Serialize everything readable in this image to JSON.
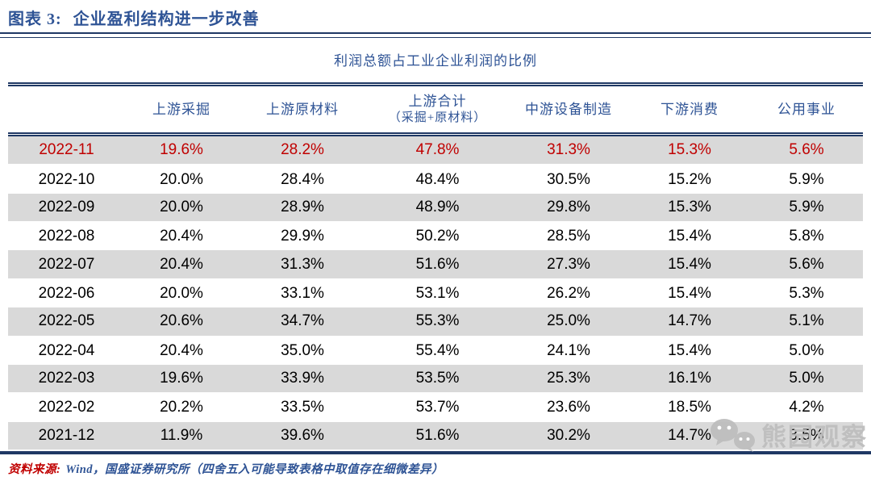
{
  "figure": {
    "label": "图表 3:",
    "title": "企业盈利结构进一步改善"
  },
  "table": {
    "title": "利润总额占工业企业利润的比例",
    "header": {
      "col1": "上游采掘",
      "col2": "上游原材料",
      "col3_line1": "上游合计",
      "col3_line2": "（采掘+原材料）",
      "col4": "中游设备制造",
      "col5": "下游消费",
      "col6": "公用事业"
    },
    "rows": [
      {
        "date": "2022-11",
        "values": [
          "19.6%",
          "28.2%",
          "47.8%",
          "31.3%",
          "15.3%",
          "5.6%"
        ],
        "highlight": true
      },
      {
        "date": "2022-10",
        "values": [
          "20.0%",
          "28.4%",
          "48.4%",
          "30.5%",
          "15.2%",
          "5.9%"
        ],
        "highlight": false
      },
      {
        "date": "2022-09",
        "values": [
          "20.0%",
          "28.9%",
          "48.9%",
          "29.8%",
          "15.3%",
          "5.9%"
        ],
        "highlight": false
      },
      {
        "date": "2022-08",
        "values": [
          "20.4%",
          "29.9%",
          "50.2%",
          "28.5%",
          "15.4%",
          "5.8%"
        ],
        "highlight": false
      },
      {
        "date": "2022-07",
        "values": [
          "20.4%",
          "31.3%",
          "51.6%",
          "27.3%",
          "15.4%",
          "5.6%"
        ],
        "highlight": false
      },
      {
        "date": "2022-06",
        "values": [
          "20.0%",
          "33.1%",
          "53.1%",
          "26.2%",
          "15.4%",
          "5.3%"
        ],
        "highlight": false
      },
      {
        "date": "2022-05",
        "values": [
          "20.6%",
          "34.7%",
          "55.3%",
          "25.0%",
          "14.7%",
          "5.1%"
        ],
        "highlight": false
      },
      {
        "date": "2022-04",
        "values": [
          "20.4%",
          "35.0%",
          "55.4%",
          "24.1%",
          "15.4%",
          "5.0%"
        ],
        "highlight": false
      },
      {
        "date": "2022-03",
        "values": [
          "19.6%",
          "33.9%",
          "53.5%",
          "25.3%",
          "16.1%",
          "5.0%"
        ],
        "highlight": false
      },
      {
        "date": "2022-02",
        "values": [
          "20.2%",
          "33.5%",
          "53.7%",
          "23.6%",
          "18.5%",
          "4.2%"
        ],
        "highlight": false
      },
      {
        "date": "2021-12",
        "values": [
          "11.9%",
          "39.6%",
          "51.6%",
          "30.2%",
          "14.7%",
          "3.5%"
        ],
        "highlight": false
      }
    ]
  },
  "footer": {
    "source_label": "资料来源:",
    "source_text": "Wind，国盛证券研究所（四舍五入可能导致表格中取值存在细微差异）"
  },
  "watermark": {
    "icon": "wechat-icon",
    "text": "熊园观察"
  },
  "colors": {
    "accent_blue": "#2E5395",
    "line_navy": "#1F3864",
    "highlight_red": "#C00000",
    "row_gray": "#D9D9D9",
    "watermark_gray": "#BEBEBE"
  },
  "chart_data": {
    "type": "table",
    "title": "利润总额占工业企业利润的比例",
    "columns": [
      "上游采掘",
      "上游原材料",
      "上游合计（采掘+原材料）",
      "中游设备制造",
      "下游消费",
      "公用事业"
    ],
    "row_labels": [
      "2022-11",
      "2022-10",
      "2022-09",
      "2022-08",
      "2022-07",
      "2022-06",
      "2022-05",
      "2022-04",
      "2022-03",
      "2022-02",
      "2021-12"
    ],
    "values_pct": [
      [
        19.6,
        28.2,
        47.8,
        31.3,
        15.3,
        5.6
      ],
      [
        20.0,
        28.4,
        48.4,
        30.5,
        15.2,
        5.9
      ],
      [
        20.0,
        28.9,
        48.9,
        29.8,
        15.3,
        5.9
      ],
      [
        20.4,
        29.9,
        50.2,
        28.5,
        15.4,
        5.8
      ],
      [
        20.4,
        31.3,
        51.6,
        27.3,
        15.4,
        5.6
      ],
      [
        20.0,
        33.1,
        53.1,
        26.2,
        15.4,
        5.3
      ],
      [
        20.6,
        34.7,
        55.3,
        25.0,
        14.7,
        5.1
      ],
      [
        20.4,
        35.0,
        55.4,
        24.1,
        15.4,
        5.0
      ],
      [
        19.6,
        33.9,
        53.5,
        25.3,
        16.1,
        5.0
      ],
      [
        20.2,
        33.5,
        53.7,
        23.6,
        18.5,
        4.2
      ],
      [
        11.9,
        39.6,
        51.6,
        30.2,
        14.7,
        3.5
      ]
    ],
    "highlighted_row": "2022-11",
    "notes": "first row rendered in red; alternating gray/white row stripes"
  }
}
